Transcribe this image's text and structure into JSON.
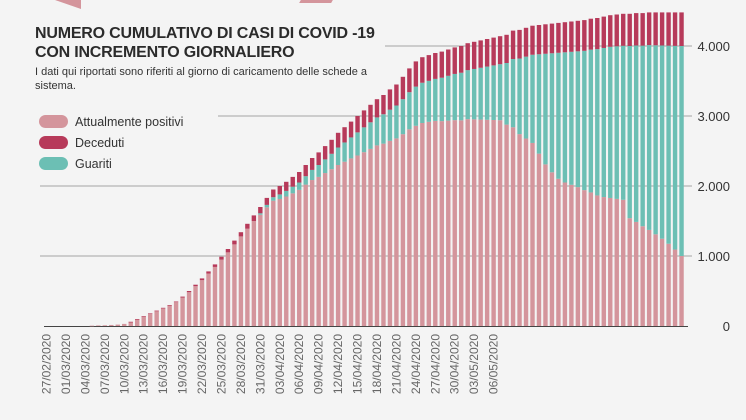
{
  "colors": {
    "positive": "#d4959c",
    "deceased": "#b73a5a",
    "recovered": "#6cbfb4",
    "background": "#f4f4f4",
    "grid": "#b5b5b5"
  },
  "header": {
    "title_line1": "NUMERO CUMULATIVO DI CASI DI COVID -19",
    "title_line2": "CON INCREMENTO GIORNALIERO",
    "subtitle": "I dati qui riportati sono riferiti al giorno di caricamento delle schede a sistema."
  },
  "legend": [
    {
      "label": "Attualmente positivi",
      "color": "#d4959c"
    },
    {
      "label": "Deceduti",
      "color": "#b73a5a"
    },
    {
      "label": "Guariti",
      "color": "#6cbfb4"
    }
  ],
  "chart_data": {
    "type": "bar",
    "stacked": true,
    "grid": true,
    "legend_position": "top-left",
    "ylim": [
      0,
      4500
    ],
    "y_ticks": [
      0,
      1000,
      2000,
      3000,
      4000
    ],
    "y_tick_labels": [
      "0",
      "1.000",
      "2.000",
      "3.000",
      "4.000"
    ],
    "x_first_date": "27/02/2020",
    "x_tick_every_days": 3,
    "x_tick_labels": [
      "27/02/2020",
      "01/03/2020",
      "04/03/2020",
      "07/03/2020",
      "10/03/2020",
      "13/03/2020",
      "16/03/2020",
      "19/03/2020",
      "22/03/2020",
      "25/03/2020",
      "28/03/2020",
      "31/03/2020",
      "03/04/2020",
      "06/04/2020",
      "09/04/2020",
      "12/04/2020",
      "15/04/2020",
      "18/04/2020",
      "21/04/2020",
      "24/04/2020",
      "27/04/2020",
      "30/04/2020",
      "03/05/2020",
      "06/05/2020"
    ],
    "series": [
      {
        "name": "Attualmente positivi",
        "values": [
          0,
          0,
          0,
          0,
          0,
          0,
          0,
          5,
          8,
          10,
          15,
          20,
          30,
          59,
          98,
          137,
          176,
          215,
          254,
          292,
          340,
          407,
          483,
          569,
          655,
          750,
          844,
          948,
          1052,
          1166,
          1280,
          1390,
          1500,
          1590,
          1695,
          1790,
          1815,
          1850,
          1895,
          1945,
          2020,
          2085,
          2130,
          2185,
          2240,
          2300,
          2347,
          2394,
          2436,
          2483,
          2530,
          2580,
          2605,
          2645,
          2680,
          2740,
          2810,
          2860,
          2900,
          2917,
          2930,
          2927,
          2934,
          2941,
          2938,
          2955,
          2952,
          2949,
          2946,
          2943,
          2940,
          2877,
          2839,
          2741,
          2678,
          2615,
          2462,
          2309,
          2196,
          2103,
          2050,
          2017,
          1984,
          1941,
          1908,
          1865,
          1842,
          1829,
          1816,
          1803,
          1540,
          1487,
          1425,
          1373,
          1310,
          1247,
          1175,
          1092,
          1000
        ]
      },
      {
        "name": "Guariti",
        "values": [
          0,
          0,
          0,
          0,
          0,
          0,
          0,
          0,
          0,
          0,
          0,
          0,
          0,
          0,
          0,
          0,
          0,
          0,
          0,
          0,
          0,
          0,
          0,
          0,
          0,
          0,
          0,
          0,
          0,
          0,
          0,
          0,
          0,
          20,
          35,
          50,
          65,
          80,
          95,
          105,
          120,
          145,
          170,
          195,
          220,
          250,
          275,
          300,
          330,
          355,
          380,
          400,
          420,
          445,
          470,
          500,
          530,
          560,
          575,
          585,
          600,
          620,
          640,
          660,
          680,
          700,
          720,
          740,
          760,
          780,
          800,
          880,
          975,
          1080,
          1170,
          1260,
          1420,
          1580,
          1700,
          1800,
          1860,
          1900,
          1940,
          1990,
          2040,
          2090,
          2130,
          2160,
          2180,
          2200,
          2460,
          2520,
          2580,
          2640,
          2700,
          2760,
          2830,
          2910,
          3000
        ]
      },
      {
        "name": "Deceduti",
        "values": [
          0,
          0,
          0,
          0,
          0,
          0,
          0,
          0,
          0,
          0,
          0,
          0,
          0,
          1,
          2,
          3,
          4,
          5,
          6,
          8,
          10,
          13,
          17,
          21,
          25,
          30,
          36,
          42,
          48,
          54,
          60,
          70,
          80,
          90,
          100,
          110,
          120,
          130,
          140,
          150,
          160,
          170,
          180,
          190,
          200,
          210,
          218,
          226,
          234,
          242,
          250,
          260,
          275,
          290,
          300,
          320,
          340,
          360,
          365,
          368,
          370,
          373,
          376,
          379,
          382,
          385,
          388,
          391,
          394,
          397,
          400,
          403,
          406,
          409,
          412,
          415,
          418,
          421,
          424,
          427,
          430,
          433,
          436,
          439,
          442,
          445,
          448,
          451,
          454,
          457,
          460,
          463,
          465,
          467,
          470,
          473,
          475,
          478,
          480
        ]
      }
    ]
  }
}
